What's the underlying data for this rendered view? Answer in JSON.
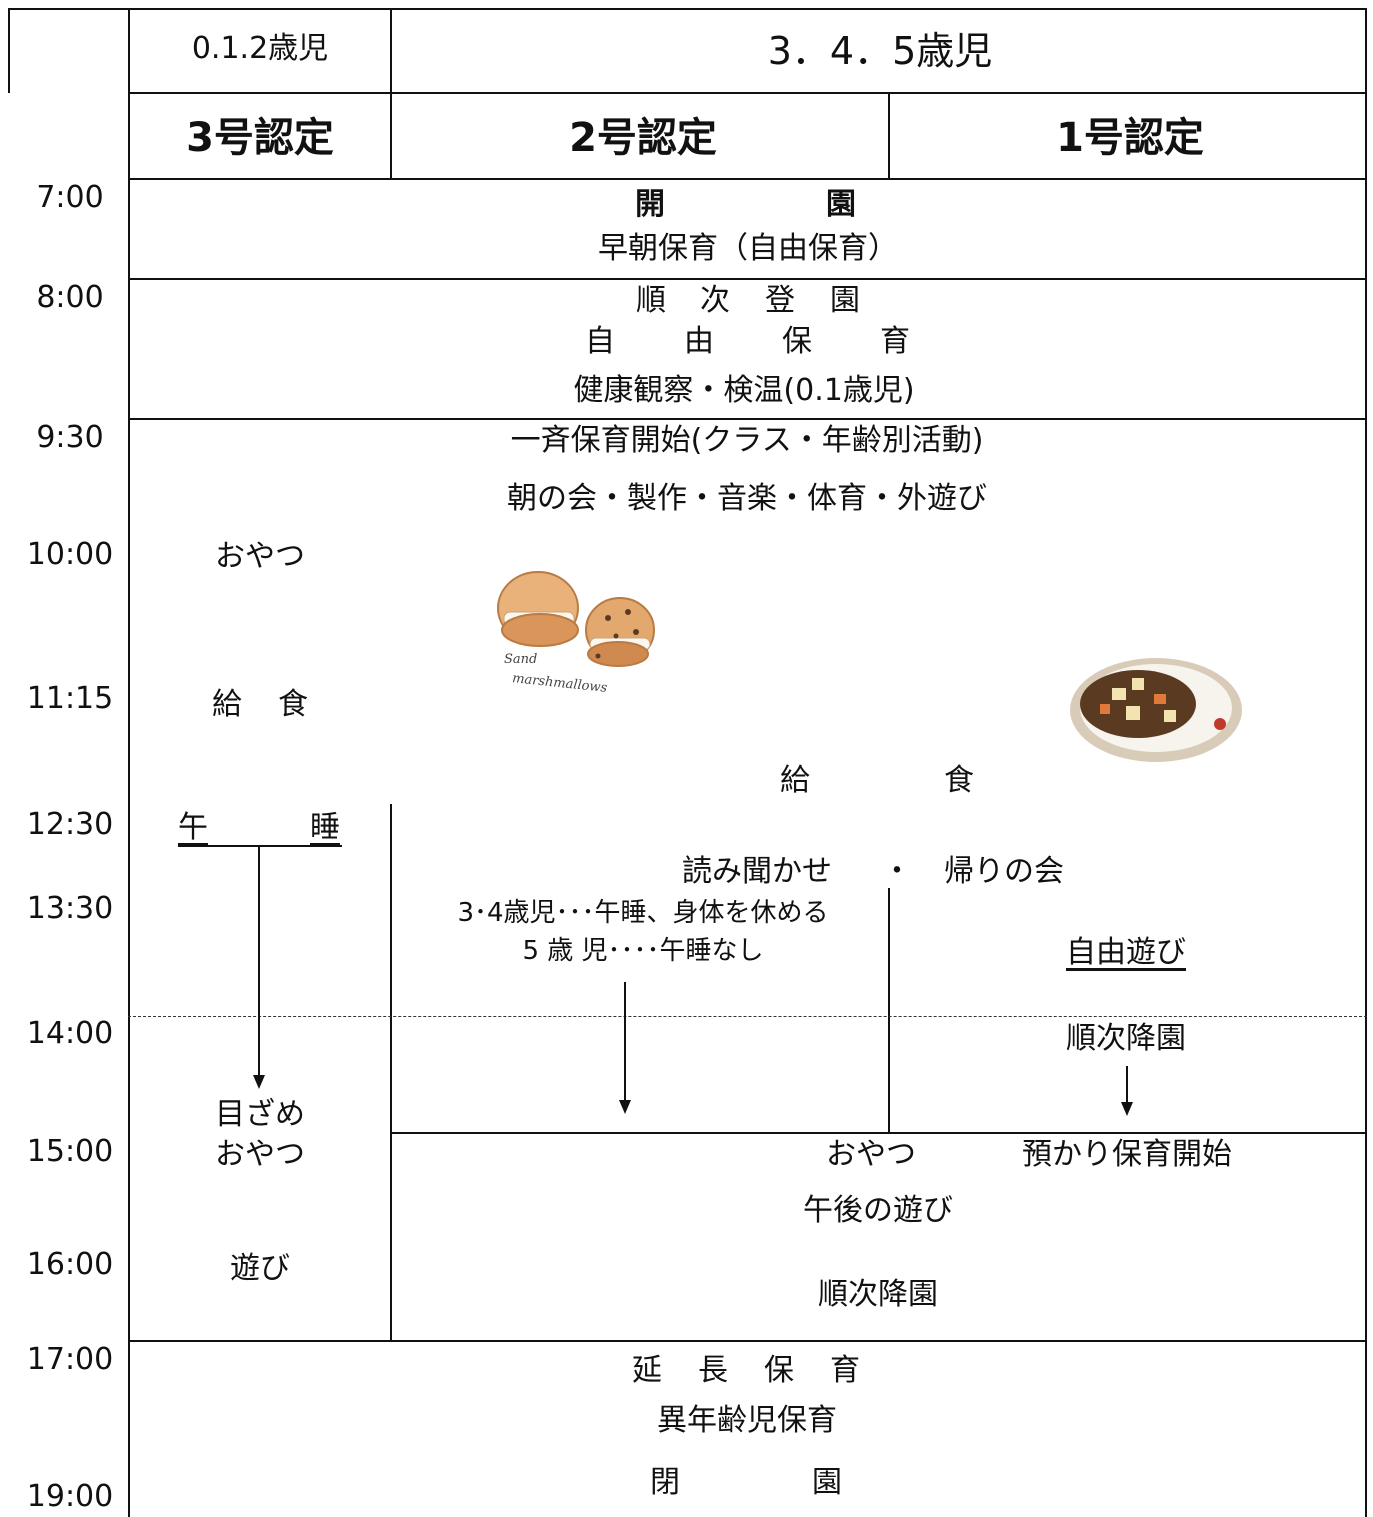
{
  "header": {
    "age_012": "0.1.2歳児",
    "age_345": "3．4．5歳児",
    "cert_3": "3号認定",
    "cert_2": "2号認定",
    "cert_1": "1号認定"
  },
  "times": [
    "7:00",
    "8:00",
    "9:30",
    "10:00",
    "11:15",
    "12:30",
    "13:30",
    "14:00",
    "15:00",
    "16:00",
    "17:00",
    "19:00"
  ],
  "schedule": {
    "open_a": "開",
    "open_b": "園",
    "early_care": "早朝保育（自由保育）",
    "arrival": [
      "順",
      "次",
      "登",
      "園"
    ],
    "free_care": [
      "自",
      "由",
      "保",
      "育"
    ],
    "health_check": "健康観察・検温(0.1歳児)",
    "group_start": "一斉保育開始(クラス・年齢別活動)",
    "morning_activities": "朝の会・製作・音楽・体育・外遊び",
    "snack_012": "おやつ",
    "lunch_012_a": "給",
    "lunch_012_b": "食",
    "image_caption_1": "Sand",
    "image_caption_2": "marshmallows",
    "lunch_345_a": "給",
    "lunch_345_b": "食",
    "nap_a": "午",
    "nap_b": "睡",
    "reading_a": "読み聞かせ",
    "reading_dot": "・",
    "reading_b": "帰りの会",
    "nap_34": "3･4歳児･･･午睡、身体を休める",
    "nap_5": "5 歳 児････午睡なし",
    "free_play": "自由遊び",
    "pickup_1": "順次降園",
    "wake_up": "目ざめ",
    "snack_012_pm": "おやつ",
    "snack_345_pm": "おやつ",
    "extended_start": "預かり保育開始",
    "afternoon_play": "午後の遊び",
    "play_012": "遊び",
    "pickup_345": "順次降園",
    "extended_care": [
      "延",
      "長",
      "保",
      "育"
    ],
    "mixed_age": "異年齢児保育",
    "close_a": "閉",
    "close_b": "園"
  },
  "icons": {
    "cookie": "sandwich-cookie-illustration",
    "curry": "curry-rice-illustration"
  }
}
